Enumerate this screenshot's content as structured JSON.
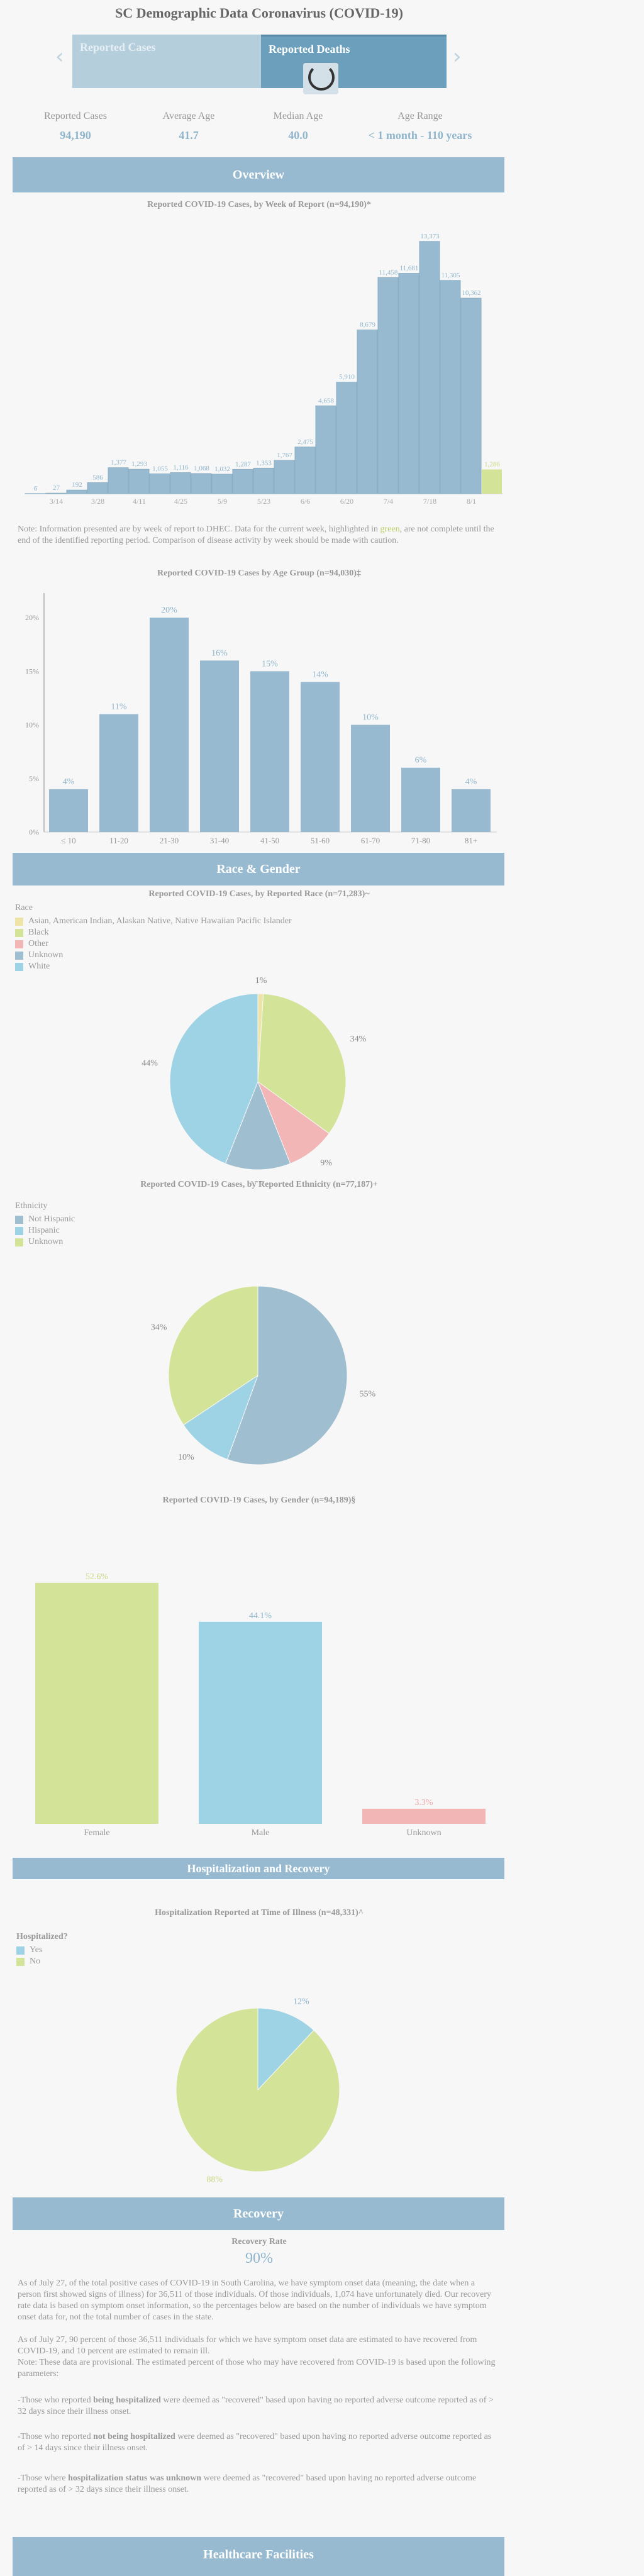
{
  "header": {
    "title": "SC Demographic Data Coronavirus (COVID-19)"
  },
  "tabs": [
    {
      "label": "Reported Cases"
    },
    {
      "label": "Reported Deaths"
    }
  ],
  "stats": [
    {
      "label": "Reported Cases",
      "value": "94,190"
    },
    {
      "label": "Average Age",
      "value": "41.7"
    },
    {
      "label": "Median Age",
      "value": "40.0"
    },
    {
      "label": "Age Range",
      "value": "< 1 month - 110 years"
    }
  ],
  "sections": {
    "overview": "Overview",
    "race_gender": "Race & Gender",
    "hospitalization": "Hospitalization and Recovery",
    "recovery": "Recovery",
    "healthcare": "Healthcare Facilities"
  },
  "note": {
    "prefix": "Note: Information presented are by week of report to DHEC. Data for the current week, highlighted in ",
    "highlight": "green",
    "suffix": ", are not complete until the end of the identified reporting period. Comparison of disease activity by week should be made with caution."
  },
  "colors": {
    "blue": "#98bad0",
    "green": "#d3e397",
    "pink": "#f2b6b6",
    "lightblue": "#9dd3e4",
    "yellow": "#efe4a8",
    "steel": "#9fbfd0"
  },
  "recovery": {
    "label": "Recovery Rate",
    "value": "90%",
    "p1": "As of July 27, of the total positive cases of COVID-19 in South Carolina, we have symptom onset data (meaning, the date when a person first showed signs of illness) for 36,511 of those individuals. Of those individuals, 1,074 have unfortunately died. Our recovery rate data is based on symptom onset information, so the percentages below are based on the number of individuals we have symptom onset data for, not the total number of cases in the state.",
    "p2": "As of July 27, 90 percent of those 36,511 individuals for which we have symptom onset data are estimated to have recovered from COVID-19, and 10 percent are estimated to remain ill.",
    "p3": "Note: These data are provisional. The estimated percent of those who may have recovered from COVID-19 is based upon the following parameters:",
    "b1_pre": "-Those who reported ",
    "b1_bold": "being hospitalized",
    "b1_post": " were deemed as \"recovered\" based upon having no reported adverse outcome reported as of > 32 days since their illness onset.",
    "b2_pre": "-Those who reported ",
    "b2_bold": "not being hospitalized",
    "b2_post": " were deemed as \"recovered\" based upon having no reported adverse outcome reported as of > 14 days since their illness onset.",
    "b3_pre": "-Those where ",
    "b3_bold": "hospitalization status was unknown",
    "b3_post": " were deemed as \"recovered\" based upon having no reported adverse outcome reported as of > 32 days since their illness onset."
  },
  "chart_data": [
    {
      "type": "bar",
      "title": "Reported COVID-19 Cases, by Week of Report (n=94,190)*",
      "categories": [
        "3/7",
        "3/14",
        "3/21",
        "3/28",
        "4/4",
        "4/11",
        "4/18",
        "4/25",
        "5/2",
        "5/9",
        "5/16",
        "5/23",
        "5/30",
        "6/6",
        "6/13",
        "6/20",
        "6/27",
        "7/4",
        "7/11",
        "7/18",
        "7/25",
        "8/1"
      ],
      "tick_labels": [
        "3/14",
        "3/28",
        "4/11",
        "4/25",
        "5/9",
        "5/23",
        "6/6",
        "6/20",
        "7/4",
        "7/18",
        "8/1"
      ],
      "values": [
        6,
        27,
        192,
        586,
        1377,
        1293,
        1055,
        1116,
        1068,
        1032,
        1287,
        1353,
        1767,
        2475,
        4658,
        5910,
        8679,
        11458,
        11681,
        13373,
        11305,
        10362
      ],
      "current_value": 1286,
      "value_labels": [
        "6",
        "27",
        "192",
        "586",
        "1,377",
        "1,293",
        "1,055",
        "1,116",
        "1,068",
        "1,032",
        "1,287",
        "1,353",
        "1,767",
        "2,475",
        "4,658",
        "5,910",
        "8,679",
        "11,458",
        "11,681",
        "13,373",
        "11,305",
        "10,362"
      ],
      "current_label": "1,286",
      "ylim": [
        0,
        14000
      ]
    },
    {
      "type": "bar",
      "title": "Reported COVID-19 Cases by Age Group (n=94,030)‡",
      "categories": [
        "≤ 10",
        "11-20",
        "21-30",
        "31-40",
        "41-50",
        "51-60",
        "61-70",
        "71-80",
        "81+"
      ],
      "values": [
        4,
        11,
        20,
        16,
        15,
        14,
        10,
        6,
        4
      ],
      "value_labels": [
        "4%",
        "11%",
        "20%",
        "16%",
        "15%",
        "14%",
        "10%",
        "6%",
        "4%"
      ],
      "yticks": [
        "0%",
        "5%",
        "10%",
        "15%",
        "20%"
      ],
      "ylim": [
        0,
        22
      ]
    },
    {
      "type": "pie",
      "title": "Reported COVID-19 Cases, by Reported Race (n=71,283)~",
      "legend_title": "Race",
      "labels": [
        "Asian, American Indian, Alaskan Native, Native Hawaiian Pacific Islander",
        "Black",
        "Other",
        "Unknown",
        "White"
      ],
      "values": [
        1,
        34,
        9,
        12,
        44
      ],
      "value_labels": [
        "1%",
        "34%",
        "9%",
        "12%",
        "44%"
      ]
    },
    {
      "type": "pie",
      "title": "Reported COVID-19 Cases, by Reported Ethnicity (n=77,187)+",
      "legend_title": "Ethnicity",
      "labels": [
        "Not Hispanic",
        "Hispanic",
        "Unknown"
      ],
      "values": [
        55,
        10,
        34
      ],
      "value_labels": [
        "55%",
        "10%",
        "34%"
      ]
    },
    {
      "type": "bar",
      "title": "Reported COVID-19 Cases, by Gender (n=94,189)§",
      "categories": [
        "Female",
        "Male",
        "Unknown"
      ],
      "values": [
        52.6,
        44.1,
        3.3
      ],
      "value_labels": [
        "52.6%",
        "44.1%",
        "3.3%"
      ],
      "ylim": [
        0,
        60
      ]
    },
    {
      "type": "pie",
      "title": "Hospitalization Reported at Time of Illness (n=48,331)^",
      "legend_title": "Hospitalized?",
      "labels": [
        "Yes",
        "No"
      ],
      "values": [
        12,
        88
      ],
      "value_labels": [
        "12%",
        "88%"
      ]
    }
  ]
}
